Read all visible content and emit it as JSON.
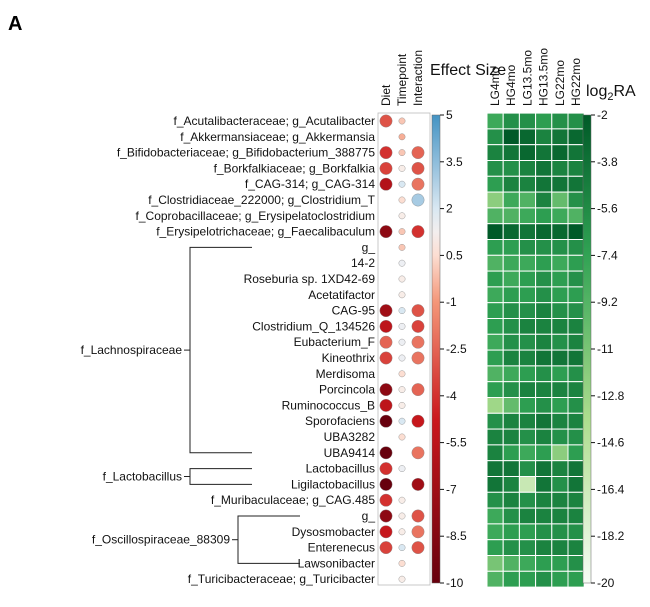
{
  "panel_label": "A",
  "chart_data": [
    {
      "type": "dot-matrix",
      "title": "Effect Size",
      "columns": [
        "Diet",
        "Timepoint",
        "Interaction"
      ],
      "colorbar": {
        "ticks": [
          "5",
          "3.5",
          "2",
          "0.5",
          "-1",
          "-2.5",
          "-4",
          "-5.5",
          "-7",
          "-8.5",
          "-10"
        ],
        "range": [
          -10,
          5
        ]
      },
      "rows": [
        "f_Acutalibacteraceae; g_Acutalibacter",
        "f_Akkermansiaceae; g_Akkermansia",
        "f_Bifidobacteriaceae; g_Bifidobacterium_388775",
        "f_Borkfalkiaceae; g_Borkfalkia",
        "f_CAG-314; g_CAG-314",
        "f_Clostridiaceae_222000; g_Clostridium_T",
        "f_Coprobacillaceae; g_Erysipelatoclostridium",
        "f_Erysipelotrichaceae; g_Faecalibaculum",
        "g_",
        "14-2",
        "Roseburia sp. 1XD42-69",
        "Acetatifactor",
        "CAG-95",
        "Clostridium_Q_134526",
        "Eubacterium_F",
        "Kineothrix",
        "Merdisoma",
        "Porcincola",
        "Ruminococcus_B",
        "Sporofaciens",
        "UBA3282",
        "UBA9414",
        "Lactobacillus",
        "Ligilactobacillus",
        "f_Muribaculaceae; g_CAG.485",
        "g_",
        "Dysosmobacter",
        "Enterenecus",
        "Lawsonibacter",
        "f_Turicibacteraceae; g_Turicibacter"
      ],
      "groups": [
        {
          "name": "f_Lachnospiraceae",
          "first_row": 8,
          "last_row": 21
        },
        {
          "name": "f_Lactobacillus",
          "first_row": 22,
          "last_row": 23
        },
        {
          "name": "f_Oscillospiraceae_88309",
          "first_row": 25,
          "last_row": 28
        }
      ],
      "values": [
        [
          -3,
          0,
          null
        ],
        [
          null,
          -0.5,
          null
        ],
        [
          -4,
          0,
          -2.5
        ],
        [
          -3.5,
          1,
          -3
        ],
        [
          -6,
          2,
          -2
        ],
        [
          null,
          0.5,
          3
        ],
        [
          null,
          1,
          null
        ],
        [
          -8,
          0,
          -4
        ],
        [
          null,
          0,
          null
        ],
        [
          null,
          1.5,
          null
        ],
        [
          null,
          1,
          null
        ],
        [
          null,
          1,
          null
        ],
        [
          -7,
          2,
          -3
        ],
        [
          -5.5,
          1.5,
          -3.5
        ],
        [
          -2.5,
          1.5,
          -2
        ],
        [
          -3.5,
          1.5,
          -2
        ],
        [
          null,
          0.5,
          null
        ],
        [
          -8,
          1,
          -2.5
        ],
        [
          -5.5,
          1,
          null
        ],
        [
          -10,
          2,
          -5
        ],
        [
          null,
          0.5,
          null
        ],
        [
          -10,
          null,
          -2
        ],
        [
          -4,
          1.5,
          null
        ],
        [
          -10,
          null,
          -7
        ],
        [
          -4,
          1,
          null
        ],
        [
          -8,
          1,
          -3
        ],
        [
          -5,
          1,
          -2
        ],
        [
          -3.5,
          2,
          -3
        ],
        [
          null,
          0.5,
          null
        ],
        [
          null,
          1,
          null
        ]
      ]
    },
    {
      "type": "heatmap",
      "columns": [
        "LG4mo",
        "HG4mo",
        "LG13.5mo",
        "HG13.5mo",
        "LG22mo",
        "HG22mo"
      ],
      "colorbar_title": "log2RA",
      "colorbar": {
        "ticks": [
          "-2",
          "-3.8",
          "-5.6",
          "-7.4",
          "-9.2",
          "-11",
          "-12.8",
          "-14.6",
          "-16.4",
          "-18.2",
          "-20"
        ],
        "range": [
          -20,
          -2
        ]
      },
      "values": [
        [
          -8,
          -6,
          -6,
          -7,
          -6,
          -6
        ],
        [
          -6,
          -2,
          -3,
          -5,
          -4,
          -3
        ],
        [
          -5,
          -4,
          -3,
          -4,
          -3,
          -4
        ],
        [
          -6,
          -6,
          -5,
          -4,
          -5,
          -5
        ],
        [
          -7,
          -5,
          -5,
          -4,
          -4,
          -4
        ],
        [
          -12,
          -8,
          -9,
          -5,
          -10,
          -6
        ],
        [
          -9,
          -9,
          -8,
          -7,
          -8,
          -9
        ],
        [
          -2,
          -3,
          -4,
          -3,
          -3,
          -2
        ],
        [
          -7,
          -7,
          -6,
          -6,
          -6,
          -6
        ],
        [
          -9,
          -8,
          -8,
          -7,
          -8,
          -7
        ],
        [
          -7,
          -8,
          -7,
          -6,
          -7,
          -6
        ],
        [
          -8,
          -7,
          -7,
          -6,
          -7,
          -7
        ],
        [
          -7,
          -6,
          -6,
          -5,
          -6,
          -6
        ],
        [
          -7,
          -6,
          -5,
          -5,
          -5,
          -5
        ],
        [
          -8,
          -6,
          -6,
          -5,
          -6,
          -5
        ],
        [
          -7,
          -5,
          -5,
          -4,
          -4,
          -4
        ],
        [
          -9,
          -8,
          -7,
          -6,
          -7,
          -6
        ],
        [
          -7,
          -6,
          -5,
          -5,
          -5,
          -5
        ],
        [
          -13,
          -10,
          -7,
          -6,
          -7,
          -6
        ],
        [
          -6,
          -5,
          -5,
          -4,
          -5,
          -5
        ],
        [
          -5,
          -5,
          -6,
          -5,
          -6,
          -6
        ],
        [
          -5,
          -7,
          -8,
          -7,
          -12,
          -7
        ],
        [
          -4,
          -4,
          -6,
          -4,
          -5,
          -4
        ],
        [
          -4,
          -5,
          -16,
          -4,
          -6,
          -4
        ],
        [
          -6,
          -5,
          -6,
          -5,
          -5,
          -5
        ],
        [
          -8,
          -6,
          -5,
          -5,
          -5,
          -5
        ],
        [
          -8,
          -7,
          -7,
          -6,
          -6,
          -6
        ],
        [
          -7,
          -6,
          -6,
          -5,
          -5,
          -5
        ],
        [
          -11,
          -9,
          -8,
          -7,
          -7,
          -6
        ],
        [
          -9,
          -7,
          -7,
          -6,
          -7,
          -7
        ]
      ]
    }
  ]
}
